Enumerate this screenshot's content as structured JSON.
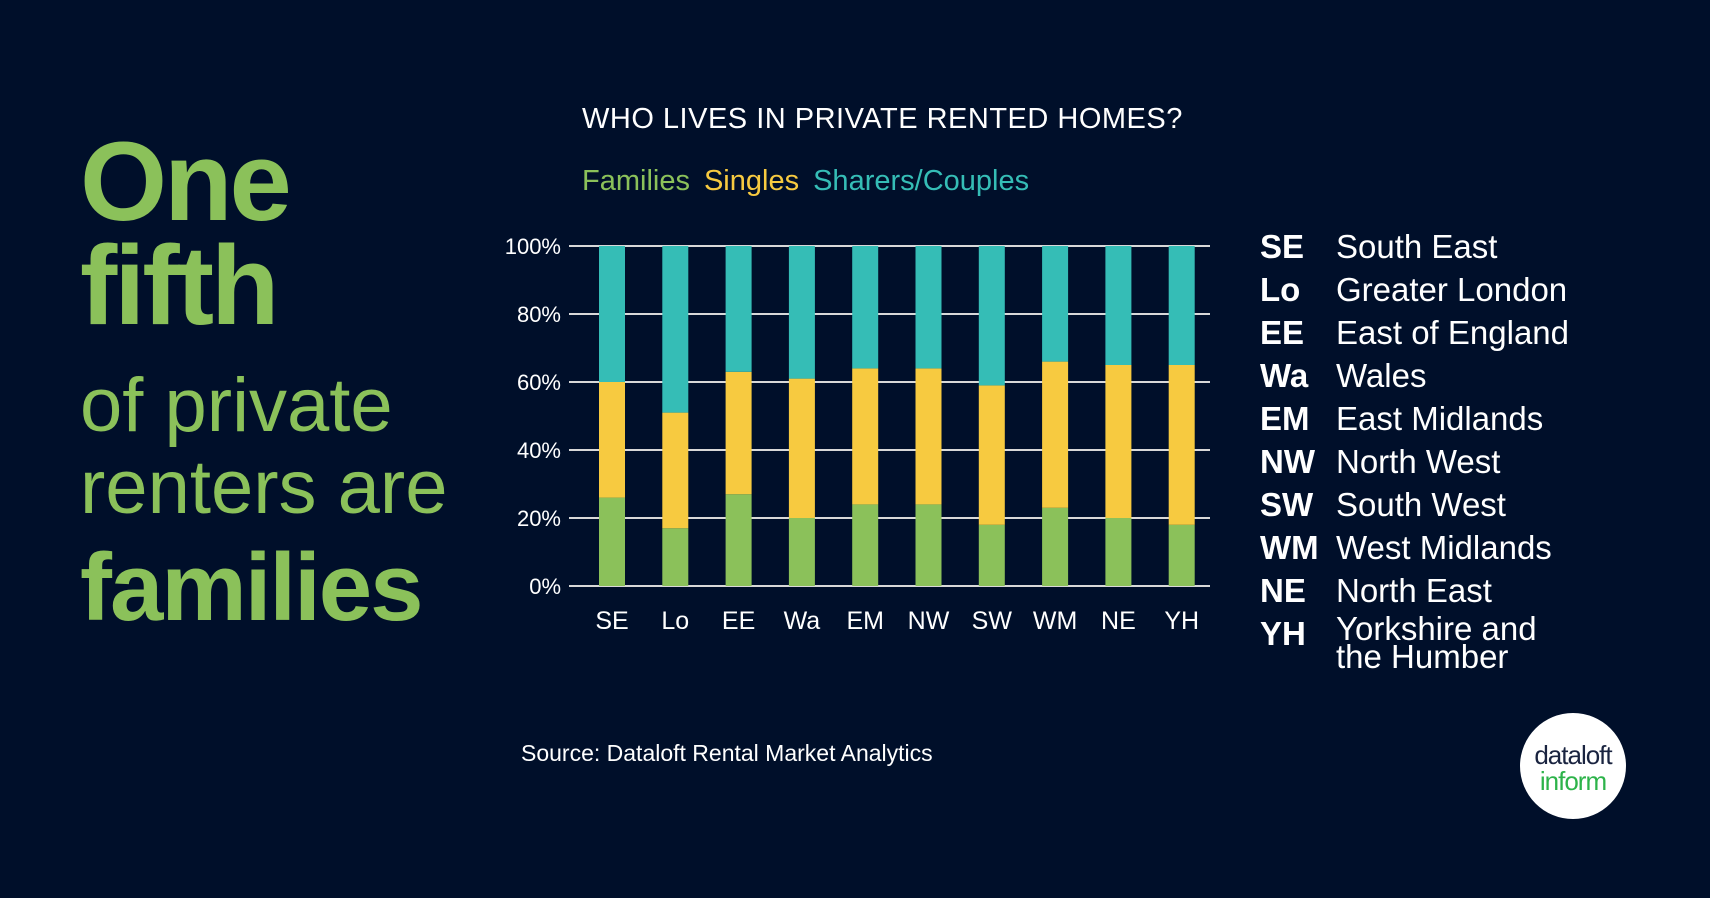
{
  "headline": {
    "line1": "One",
    "line2": "fifth",
    "line3": "of private",
    "line4": "renters are",
    "line5": "families"
  },
  "source": "Source: Dataloft Rental Market Analytics",
  "logo": {
    "line1": "dataloft",
    "line2": "inform"
  },
  "region_key": [
    {
      "code": "SE",
      "name": "South East"
    },
    {
      "code": "Lo",
      "name": "Greater London"
    },
    {
      "code": "EE",
      "name": "East of England"
    },
    {
      "code": "Wa",
      "name": "Wales"
    },
    {
      "code": "EM",
      "name": "East Midlands"
    },
    {
      "code": "NW",
      "name": "North West"
    },
    {
      "code": "SW",
      "name": "South West"
    },
    {
      "code": "WM",
      "name": "West Midlands"
    },
    {
      "code": "NE",
      "name": "North East"
    },
    {
      "code": "YH",
      "name": "Yorkshire and the Humber"
    }
  ],
  "colors": {
    "background": "#000f2a",
    "families": "#8bc15a",
    "singles": "#f7ca40",
    "sharers": "#35bdb6"
  },
  "chart_data": {
    "type": "bar",
    "stacked": true,
    "title": "WHO LIVES IN PRIVATE RENTED HOMES?",
    "categories": [
      "SE",
      "Lo",
      "EE",
      "Wa",
      "EM",
      "NW",
      "SW",
      "WM",
      "NE",
      "YH"
    ],
    "series": [
      {
        "name": "Families",
        "color": "#8bc15a",
        "values": [
          26,
          17,
          27,
          20,
          24,
          24,
          18,
          23,
          20,
          18
        ]
      },
      {
        "name": "Singles",
        "color": "#f7ca40",
        "values": [
          34,
          34,
          36,
          41,
          40,
          40,
          41,
          43,
          45,
          47
        ]
      },
      {
        "name": "Sharers/Couples",
        "color": "#35bdb6",
        "values": [
          40,
          49,
          37,
          39,
          36,
          36,
          41,
          34,
          35,
          35
        ]
      }
    ],
    "ylim": [
      0,
      100
    ],
    "yticks": [
      "0%",
      "20%",
      "40%",
      "60%",
      "80%",
      "100%"
    ],
    "grid": true,
    "legend": "top"
  }
}
